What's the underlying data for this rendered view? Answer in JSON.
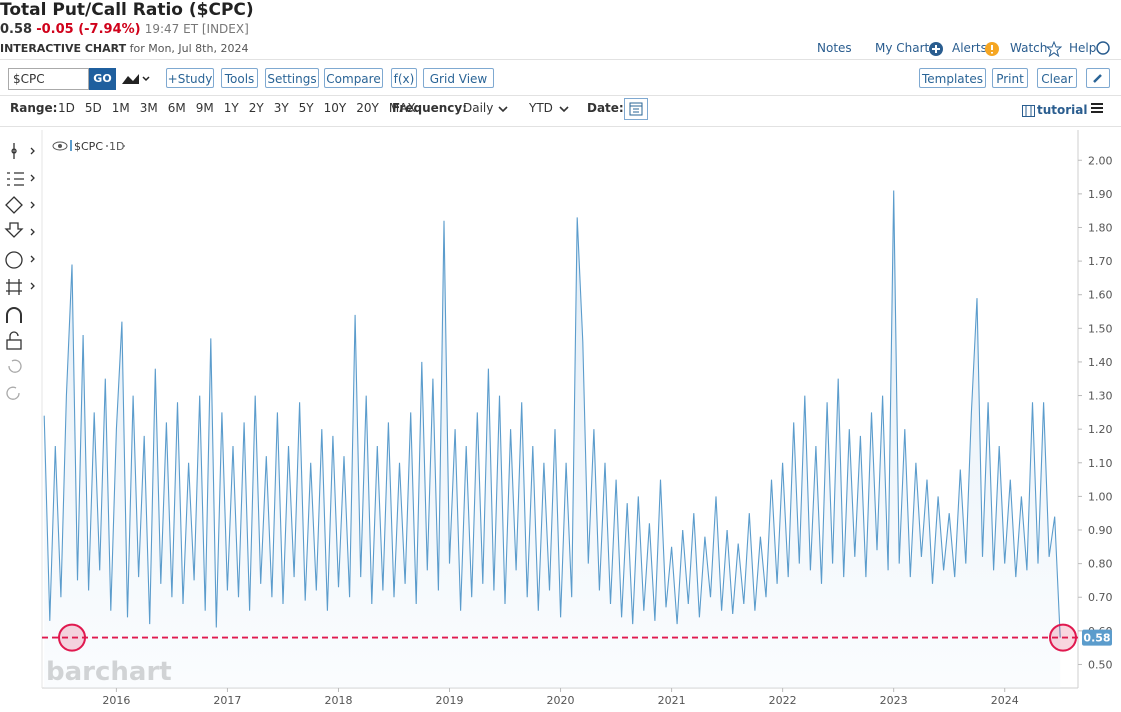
{
  "header": {
    "title": "Total Put/Call Ratio ($CPC)",
    "last": "0.58",
    "change": "-0.05 (-7.94%)",
    "time": "19:47 ET [INDEX]",
    "chart_label": "INTERACTIVE CHART",
    "date": "for Mon, Jul 8th, 2024",
    "links": [
      "Notes",
      "My Charts",
      "Alerts",
      "Watch",
      "Help"
    ]
  },
  "toolbar": {
    "symbol": "$CPC",
    "go": "GO",
    "buttons": [
      "+Study",
      "Tools",
      "Settings",
      "Compare",
      "f(x)",
      "Grid View"
    ],
    "right_buttons": [
      "Templates",
      "Print",
      "Clear"
    ]
  },
  "range_bar": {
    "label": "Range:",
    "ranges": [
      "1D",
      "5D",
      "1M",
      "3M",
      "6M",
      "9M",
      "1Y",
      "2Y",
      "3Y",
      "5Y",
      "10Y",
      "20Y",
      "MAX"
    ],
    "frequency_label": "Frequency:",
    "frequency": "Daily",
    "period": "YTD",
    "date_label": "Date:",
    "tutorial": "tutorial"
  },
  "chart_data": {
    "type": "line",
    "interval": "1D",
    "watermark": "barchart",
    "x": [
      2015.35,
      2015.4,
      2015.45,
      2015.5,
      2015.55,
      2015.6,
      2015.65,
      2015.7,
      2015.75,
      2015.8,
      2015.85,
      2015.9,
      2015.95,
      2016,
      2016.05,
      2016.1,
      2016.15,
      2016.2,
      2016.25,
      2016.3,
      2016.35,
      2016.4,
      2016.45,
      2016.5,
      2016.55,
      2016.6,
      2016.65,
      2016.7,
      2016.75,
      2016.8,
      2016.85,
      2016.9,
      2016.95,
      2017,
      2017.05,
      2017.1,
      2017.15,
      2017.2,
      2017.25,
      2017.3,
      2017.35,
      2017.4,
      2017.45,
      2017.5,
      2017.55,
      2017.6,
      2017.65,
      2017.7,
      2017.75,
      2017.8,
      2017.85,
      2017.9,
      2017.95,
      2018,
      2018.05,
      2018.1,
      2018.15,
      2018.2,
      2018.25,
      2018.3,
      2018.35,
      2018.4,
      2018.45,
      2018.5,
      2018.55,
      2018.6,
      2018.65,
      2018.7,
      2018.75,
      2018.8,
      2018.85,
      2018.9,
      2018.95,
      2019,
      2019.05,
      2019.1,
      2019.15,
      2019.2,
      2019.25,
      2019.3,
      2019.35,
      2019.4,
      2019.45,
      2019.5,
      2019.55,
      2019.6,
      2019.65,
      2019.7,
      2019.75,
      2019.8,
      2019.85,
      2019.9,
      2019.95,
      2020,
      2020.05,
      2020.1,
      2020.15,
      2020.2,
      2020.25,
      2020.3,
      2020.35,
      2020.4,
      2020.45,
      2020.5,
      2020.55,
      2020.6,
      2020.65,
      2020.7,
      2020.75,
      2020.8,
      2020.85,
      2020.9,
      2020.95,
      2021,
      2021.05,
      2021.1,
      2021.15,
      2021.2,
      2021.25,
      2021.3,
      2021.35,
      2021.4,
      2021.45,
      2021.5,
      2021.55,
      2021.6,
      2021.65,
      2021.7,
      2021.75,
      2021.8,
      2021.85,
      2021.9,
      2021.95,
      2022,
      2022.05,
      2022.1,
      2022.15,
      2022.2,
      2022.25,
      2022.3,
      2022.35,
      2022.4,
      2022.45,
      2022.5,
      2022.55,
      2022.6,
      2022.65,
      2022.7,
      2022.75,
      2022.8,
      2022.85,
      2022.9,
      2022.95,
      2023,
      2023.05,
      2023.1,
      2023.15,
      2023.2,
      2023.25,
      2023.3,
      2023.35,
      2023.4,
      2023.45,
      2023.5,
      2023.55,
      2023.6,
      2023.65,
      2023.7,
      2023.75,
      2023.8,
      2023.85,
      2023.9,
      2023.95,
      2024,
      2024.05,
      2024.1,
      2024.15,
      2024.2,
      2024.25,
      2024.3,
      2024.35,
      2024.4,
      2024.45,
      2024.5
    ],
    "series": [
      {
        "name": "$CPC",
        "color": "#5b9ccc",
        "values": [
          1.24,
          0.63,
          1.15,
          0.7,
          1.3,
          1.69,
          0.75,
          1.48,
          0.72,
          1.25,
          0.78,
          1.35,
          0.66,
          1.2,
          1.52,
          0.64,
          1.3,
          0.76,
          1.18,
          0.62,
          1.38,
          0.74,
          1.22,
          0.7,
          1.28,
          0.68,
          1.1,
          0.75,
          1.3,
          0.66,
          1.47,
          0.61,
          1.25,
          0.72,
          1.15,
          0.7,
          1.22,
          0.66,
          1.3,
          0.74,
          1.12,
          0.7,
          1.25,
          0.68,
          1.15,
          0.76,
          1.28,
          0.69,
          1.1,
          0.72,
          1.2,
          0.66,
          1.18,
          0.73,
          1.12,
          0.7,
          1.54,
          0.76,
          1.3,
          0.68,
          1.15,
          0.72,
          1.22,
          0.7,
          1.1,
          0.74,
          1.25,
          0.68,
          1.4,
          0.78,
          1.35,
          0.72,
          1.82,
          0.8,
          1.2,
          0.66,
          1.15,
          0.7,
          1.25,
          0.74,
          1.38,
          0.72,
          1.3,
          0.68,
          1.2,
          0.78,
          1.28,
          0.7,
          1.15,
          0.66,
          1.1,
          0.72,
          1.2,
          0.64,
          1.1,
          0.7,
          1.83,
          1.46,
          0.8,
          1.2,
          0.72,
          1.1,
          0.68,
          1.05,
          0.64,
          0.98,
          0.62,
          1.0,
          0.66,
          0.92,
          0.63,
          1.05,
          0.67,
          0.85,
          0.62,
          0.9,
          0.68,
          0.95,
          0.64,
          0.88,
          0.7,
          1.0,
          0.66,
          0.9,
          0.65,
          0.86,
          0.68,
          0.95,
          0.66,
          0.88,
          0.7,
          1.05,
          0.74,
          1.1,
          0.76,
          1.22,
          0.8,
          1.3,
          0.78,
          1.15,
          0.74,
          1.28,
          0.8,
          1.35,
          0.76,
          1.2,
          0.82,
          1.18,
          0.76,
          1.25,
          0.84,
          1.3,
          0.78,
          1.91,
          0.8,
          1.2,
          0.76,
          1.1,
          0.82,
          1.05,
          0.74,
          1.0,
          0.78,
          0.95,
          0.76,
          1.08,
          0.8,
          1.25,
          1.59,
          0.82,
          1.28,
          0.78,
          1.15,
          0.8,
          1.05,
          0.76,
          1.0,
          0.78,
          1.28,
          0.8,
          1.28,
          0.82,
          0.94,
          0.58
        ]
      }
    ],
    "xlim": [
      2015.33,
      2024.66
    ],
    "xticks": [
      2016,
      2017,
      2018,
      2019,
      2020,
      2021,
      2022,
      2023,
      2024
    ],
    "ylim": [
      0.43,
      2.09
    ],
    "yticks": [
      {
        "value": 0.5,
        "label": "0.50"
      },
      {
        "value": 0.6,
        "label": "0.60"
      },
      {
        "value": 0.7,
        "label": "0.70"
      },
      {
        "value": 0.8,
        "label": "0.80"
      },
      {
        "value": 0.9,
        "label": "0.90"
      },
      {
        "value": 1.0,
        "label": "1.00"
      },
      {
        "value": 1.1,
        "label": "1.10"
      },
      {
        "value": 1.2,
        "label": "1.20"
      },
      {
        "value": 1.3,
        "label": "1.30"
      },
      {
        "value": 1.4,
        "label": "1.40"
      },
      {
        "value": 1.5,
        "label": "1.50"
      },
      {
        "value": 1.6,
        "label": "1.60"
      },
      {
        "value": 1.7,
        "label": "1.70"
      },
      {
        "value": 1.8,
        "label": "1.80"
      },
      {
        "value": 1.9,
        "label": "1.90"
      },
      {
        "value": 2.0,
        "label": "2.00"
      }
    ],
    "grid": false,
    "reference_line": 0.58,
    "reference_color": "#e0194f"
  }
}
